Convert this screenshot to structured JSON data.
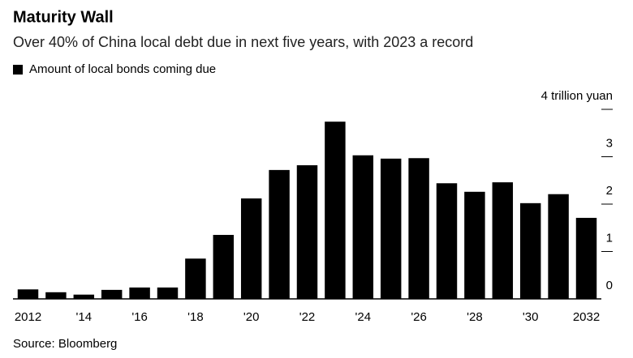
{
  "chart_data": {
    "type": "bar",
    "title": "Maturity Wall",
    "subtitle": "Over 40% of China local debt due in next five years, with 2023 a record",
    "source": "Source: Bloomberg",
    "series": [
      {
        "name": "Amount of local bonds coming due",
        "color": "#000000",
        "values": [
          0.2,
          0.14,
          0.09,
          0.19,
          0.24,
          0.24,
          0.85,
          1.35,
          2.12,
          2.72,
          2.82,
          3.74,
          3.03,
          2.96,
          2.97,
          2.44,
          2.26,
          2.46,
          2.02,
          2.21,
          1.71
        ]
      }
    ],
    "categories": [
      "2012",
      null,
      "'14",
      null,
      "'16",
      null,
      "'18",
      null,
      "'20",
      null,
      "'22",
      null,
      "'24",
      null,
      "'26",
      null,
      "'28",
      null,
      "'30",
      null,
      "2032"
    ],
    "ylim": [
      0,
      4
    ],
    "yticks": [
      0,
      1,
      2,
      3,
      {
        "value": 4,
        "label": "4 trillion yuan"
      }
    ],
    "legend": "top-left"
  }
}
